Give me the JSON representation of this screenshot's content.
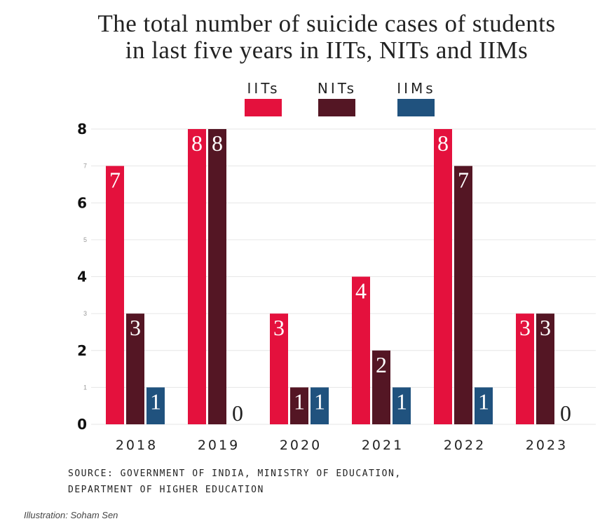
{
  "chart_data": {
    "type": "bar",
    "title_lines": [
      "The total number of suicide cases of students",
      "in last five years in IITs, NITs and IIMs"
    ],
    "categories": [
      "2018",
      "2019",
      "2020",
      "2021",
      "2022",
      "2023"
    ],
    "series": [
      {
        "name": "IITs",
        "color": "#e4113d",
        "values": [
          7,
          8,
          3,
          4,
          8,
          3
        ]
      },
      {
        "name": "NITs",
        "color": "#541624",
        "values": [
          3,
          8,
          1,
          2,
          7,
          3
        ]
      },
      {
        "name": "IIMs",
        "color": "#20527e",
        "values": [
          1,
          0,
          1,
          1,
          1,
          0
        ]
      }
    ],
    "ylim": [
      0,
      8
    ],
    "yticks": [
      "0",
      "1",
      "2",
      "3",
      "4",
      "5",
      "6",
      "7",
      "8"
    ],
    "grid": true,
    "legend": "top-center",
    "source_lines": [
      "SOURCE: GOVERNMENT OF INDIA, MINISTRY OF EDUCATION,",
      "DEPARTMENT OF HIGHER EDUCATION"
    ],
    "credit": "Illustration: Soham Sen"
  }
}
